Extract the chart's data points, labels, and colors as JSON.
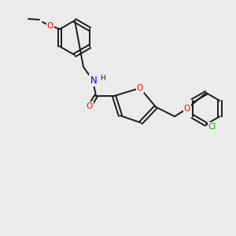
{
  "bg_color": "#ebebeb",
  "bond_color": "#1a1a1a",
  "atom_colors": {
    "O": "#ff0000",
    "N": "#0000ff",
    "Cl": "#00aa00",
    "C": "#1a1a1a"
  },
  "font_size_atom": 7.5,
  "font_size_small": 6.0,
  "lw": 1.4
}
